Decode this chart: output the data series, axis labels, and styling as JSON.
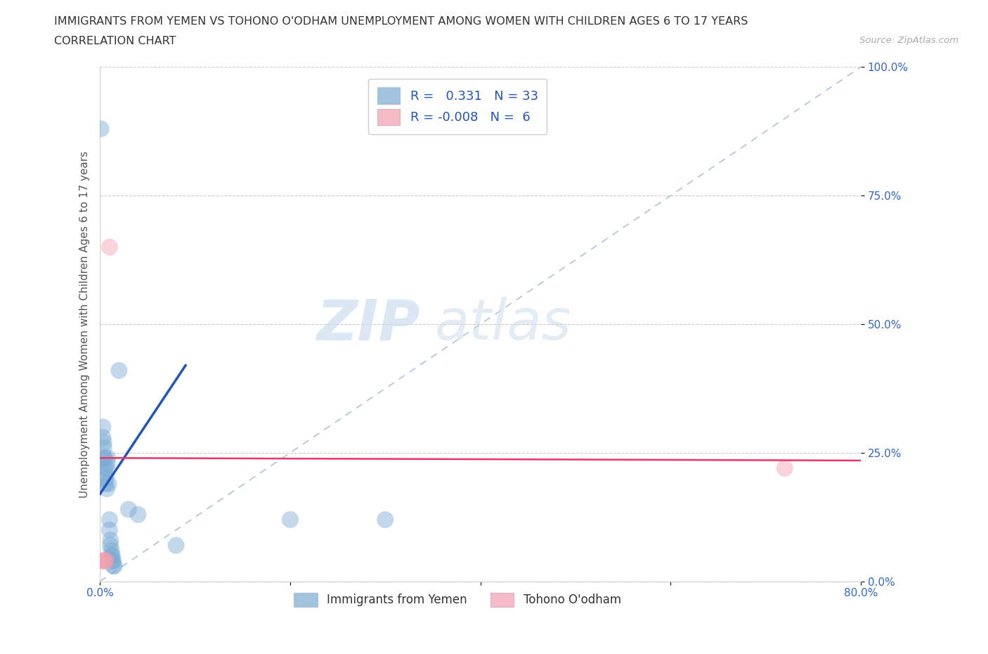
{
  "title_line1": "IMMIGRANTS FROM YEMEN VS TOHONO O'ODHAM UNEMPLOYMENT AMONG WOMEN WITH CHILDREN AGES 6 TO 17 YEARS",
  "title_line2": "CORRELATION CHART",
  "source_text": "Source: ZipAtlas.com",
  "ylabel": "Unemployment Among Women with Children Ages 6 to 17 years",
  "xlim": [
    0.0,
    0.8
  ],
  "ylim": [
    0.0,
    1.0
  ],
  "yticks": [
    0.0,
    0.25,
    0.5,
    0.75,
    1.0
  ],
  "yticklabels": [
    "0.0%",
    "25.0%",
    "50.0%",
    "75.0%",
    "100.0%"
  ],
  "blue_color": "#7aaad4",
  "pink_color": "#f4a0b0",
  "trendline_blue": "#2255bb",
  "trendline_pink": "#ee3366",
  "watermark_zip": "ZIP",
  "watermark_atlas": "atlas",
  "blue_scatter": [
    [
      0.001,
      0.88
    ],
    [
      0.003,
      0.3
    ],
    [
      0.003,
      0.28
    ],
    [
      0.004,
      0.27
    ],
    [
      0.004,
      0.26
    ],
    [
      0.004,
      0.24
    ],
    [
      0.005,
      0.24
    ],
    [
      0.005,
      0.22
    ],
    [
      0.005,
      0.21
    ],
    [
      0.006,
      0.2
    ],
    [
      0.006,
      0.19
    ],
    [
      0.007,
      0.22
    ],
    [
      0.007,
      0.18
    ],
    [
      0.008,
      0.24
    ],
    [
      0.008,
      0.23
    ],
    [
      0.009,
      0.19
    ],
    [
      0.01,
      0.12
    ],
    [
      0.01,
      0.1
    ],
    [
      0.011,
      0.08
    ],
    [
      0.011,
      0.07
    ],
    [
      0.012,
      0.06
    ],
    [
      0.012,
      0.05
    ],
    [
      0.013,
      0.05
    ],
    [
      0.013,
      0.04
    ],
    [
      0.014,
      0.04
    ],
    [
      0.014,
      0.03
    ],
    [
      0.015,
      0.03
    ],
    [
      0.02,
      0.41
    ],
    [
      0.03,
      0.14
    ],
    [
      0.04,
      0.13
    ],
    [
      0.2,
      0.12
    ],
    [
      0.3,
      0.12
    ],
    [
      0.08,
      0.07
    ]
  ],
  "pink_scatter": [
    [
      0.002,
      0.04
    ],
    [
      0.003,
      0.04
    ],
    [
      0.004,
      0.04
    ],
    [
      0.005,
      0.04
    ],
    [
      0.006,
      0.04
    ],
    [
      0.01,
      0.65
    ],
    [
      0.72,
      0.22
    ]
  ],
  "blue_trend_x": [
    0.0,
    0.09
  ],
  "blue_trend_y": [
    0.17,
    0.42
  ],
  "pink_trend_x": [
    0.0,
    0.8
  ],
  "pink_trend_y": [
    0.24,
    0.235
  ]
}
